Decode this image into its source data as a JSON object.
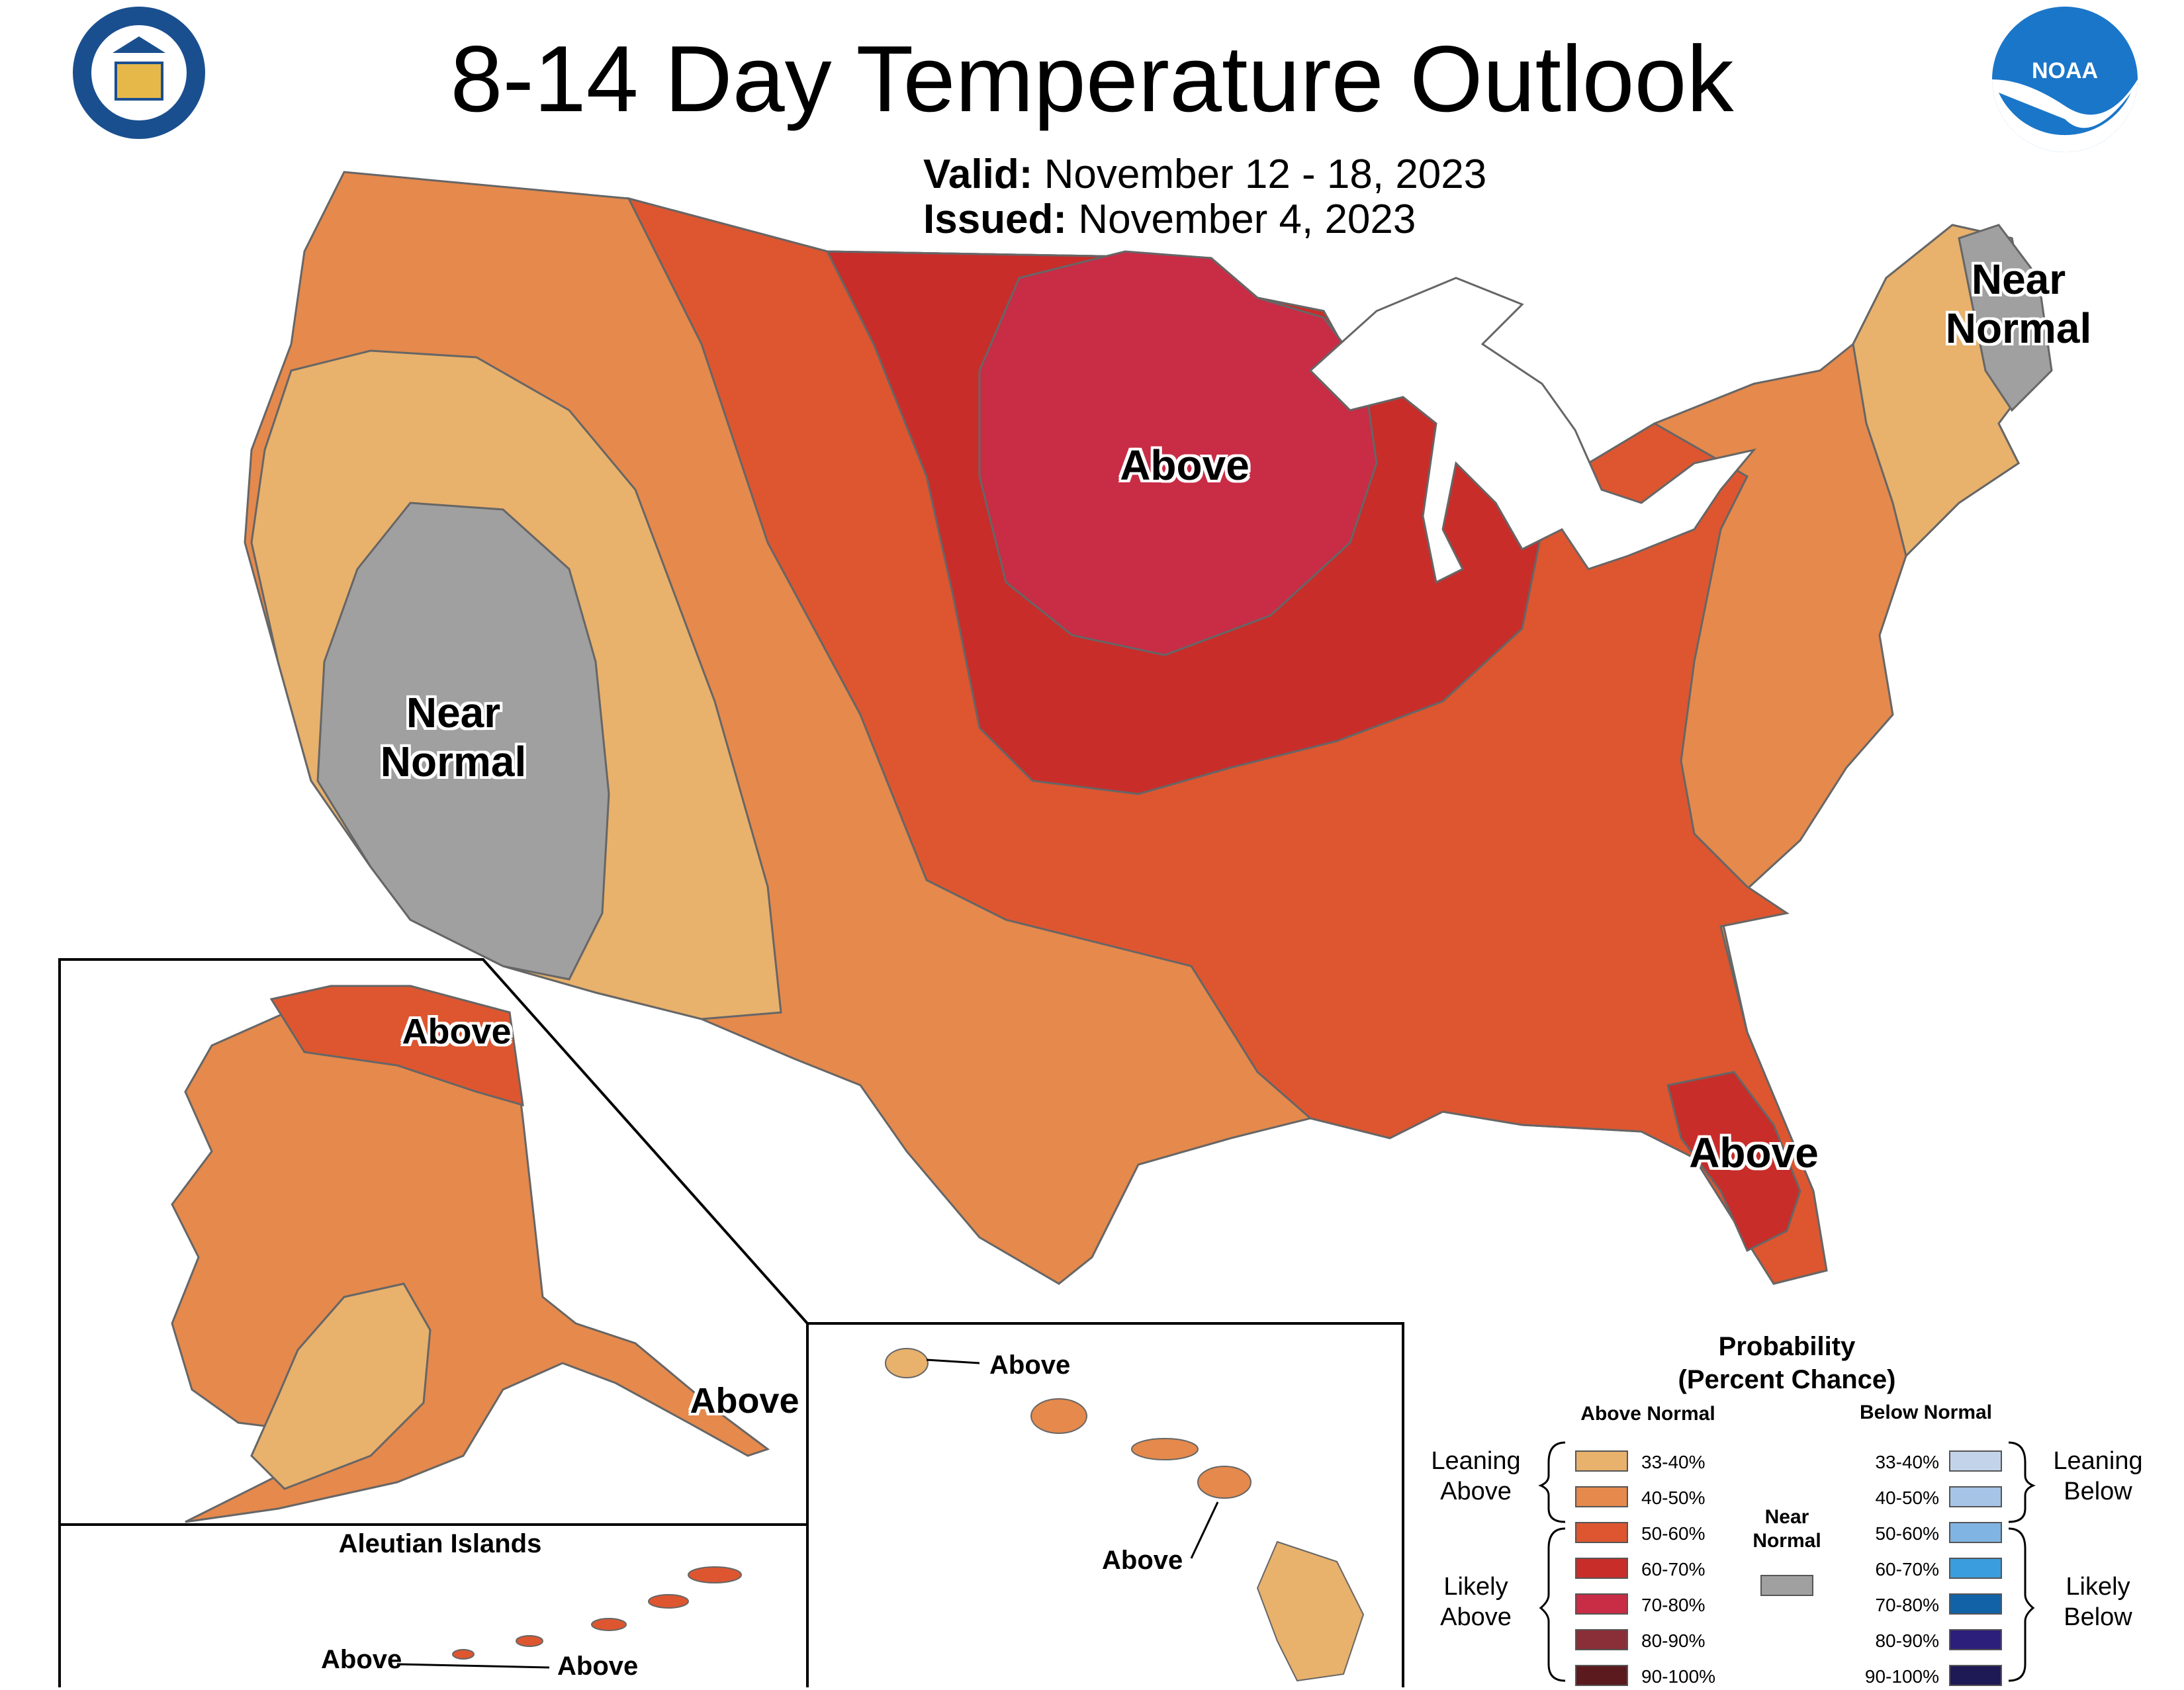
{
  "header": {
    "title": "8-14 Day Temperature Outlook",
    "valid_label": "Valid:",
    "valid_value": "November 12 - 18, 2023",
    "issued_label": "Issued:",
    "issued_value": "November 4, 2023"
  },
  "logos": {
    "commerce_seal": "department-of-commerce-seal",
    "noaa": "NOAA"
  },
  "map_labels": {
    "conus_above": "Above",
    "west_near_normal_1": "Near",
    "west_near_normal_2": "Normal",
    "maine_near_normal_1": "Near",
    "maine_near_normal_2": "Normal",
    "florida_above": "Above",
    "alaska_north_above": "Above",
    "alaska_se_above": "Above",
    "aleutian_title": "Aleutian Islands",
    "aleutian_above_1": "Above",
    "aleutian_above_2": "Above",
    "hawaii_above_1": "Above",
    "hawaii_above_2": "Above"
  },
  "legend": {
    "title_line1": "Probability",
    "title_line2": "(Percent Chance)",
    "above_header": "Above Normal",
    "below_header": "Below Normal",
    "near_normal_line1": "Near",
    "near_normal_line2": "Normal",
    "leaning_above_1": "Leaning",
    "leaning_above_2": "Above",
    "likely_above_1": "Likely",
    "likely_above_2": "Above",
    "leaning_below_1": "Leaning",
    "leaning_below_2": "Below",
    "likely_below_1": "Likely",
    "likely_below_2": "Below",
    "above_bins": [
      {
        "label": "33-40%",
        "color": "#E8B16C"
      },
      {
        "label": "40-50%",
        "color": "#E5894C"
      },
      {
        "label": "50-60%",
        "color": "#DD5630"
      },
      {
        "label": "60-70%",
        "color": "#C82D2A"
      },
      {
        "label": "70-80%",
        "color": "#C92C45"
      },
      {
        "label": "80-90%",
        "color": "#8A2E38"
      },
      {
        "label": "90-100%",
        "color": "#5B1A1E"
      }
    ],
    "below_bins": [
      {
        "label": "33-40%",
        "color": "#C3D4EA"
      },
      {
        "label": "40-50%",
        "color": "#A6C4E6"
      },
      {
        "label": "50-60%",
        "color": "#7FB4E3"
      },
      {
        "label": "60-70%",
        "color": "#3A9DDD"
      },
      {
        "label": "70-80%",
        "color": "#1262A8"
      },
      {
        "label": "80-90%",
        "color": "#2C1F7C"
      },
      {
        "label": "90-100%",
        "color": "#1E1A55"
      }
    ],
    "near_normal_color": "#A0A0A0"
  }
}
